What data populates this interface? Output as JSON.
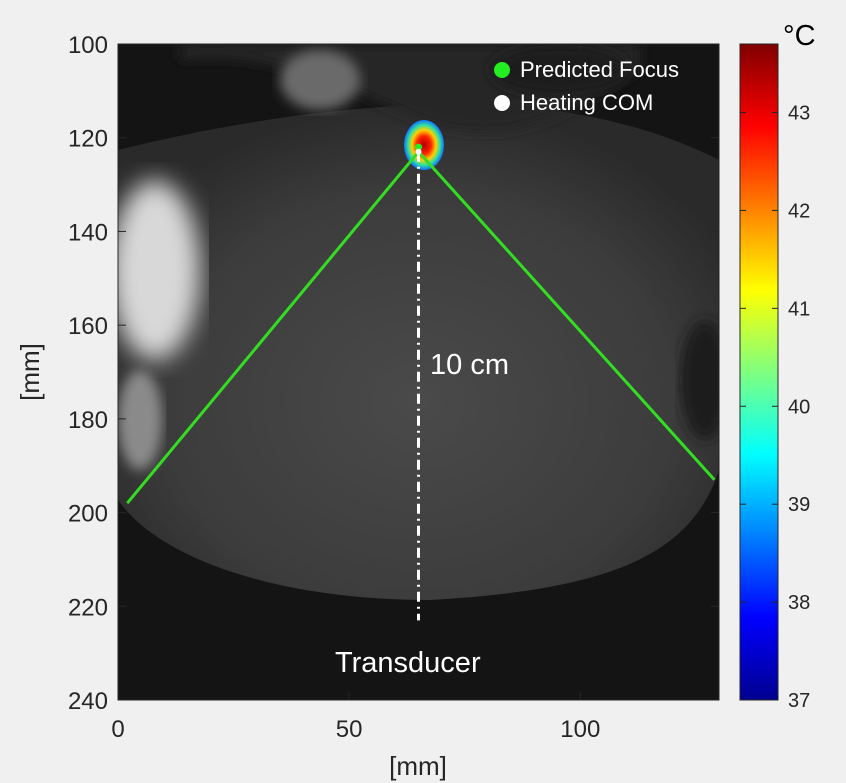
{
  "chart_data": {
    "type": "heatmap",
    "title": "",
    "xlabel": "[mm]",
    "ylabel": "[mm]",
    "xlim": [
      0,
      130
    ],
    "ylim": [
      240,
      100
    ],
    "x_ticks": [
      0,
      50,
      100
    ],
    "y_ticks": [
      100,
      120,
      140,
      160,
      180,
      200,
      220,
      240
    ],
    "colorbar": {
      "unit": "°C",
      "range": [
        37,
        43.7
      ],
      "ticks": [
        37,
        38,
        39,
        40,
        41,
        42,
        43
      ],
      "colormap": "jet"
    },
    "legend": {
      "placement": "top-right",
      "entries": [
        {
          "label": "Predicted Focus",
          "color": "#22ee22"
        },
        {
          "label": "Heating COM",
          "color": "#ffffff"
        }
      ]
    },
    "focus_point": {
      "x": 65,
      "y": 122
    },
    "heating_com": {
      "x": 65,
      "y": 123
    },
    "beam_lines": [
      {
        "from": {
          "x": 2,
          "y": 198
        },
        "to": {
          "x": 65,
          "y": 123
        }
      },
      {
        "from": {
          "x": 129,
          "y": 193
        },
        "to": {
          "x": 65,
          "y": 123
        }
      }
    ],
    "distance_line": {
      "from": {
        "x": 65,
        "y": 123
      },
      "to": {
        "x": 65,
        "y": 223
      }
    },
    "annotations": {
      "distance": "10 cm",
      "transducer": "Transducer"
    },
    "colors": {
      "beam": "#33dd22",
      "background": "#f0f0f0"
    }
  }
}
